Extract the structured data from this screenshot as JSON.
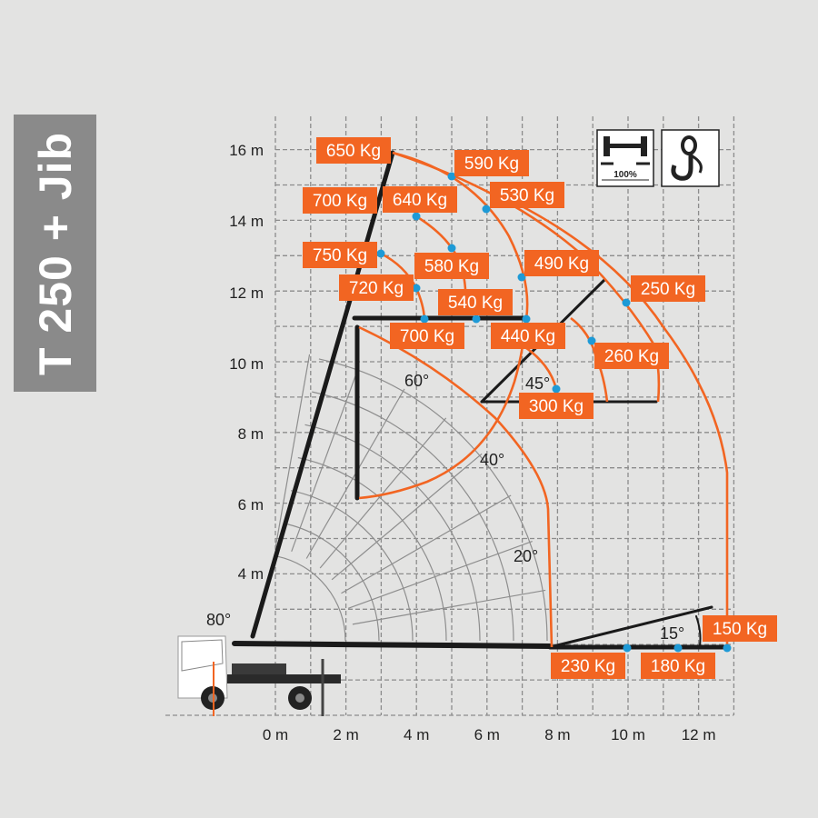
{
  "title": "T 250 + Jib",
  "y_axis": [
    "16 m",
    "14 m",
    "12 m",
    "10 m",
    "8 m",
    "6 m",
    "4 m"
  ],
  "x_axis": [
    "0 m",
    "2 m",
    "4 m",
    "6 m",
    "8 m",
    "10 m",
    "12 m"
  ],
  "angles": [
    "60°",
    "45°",
    "40°",
    "20°",
    "80°",
    "15°"
  ],
  "loads": [
    "650 Kg",
    "590 Kg",
    "530 Kg",
    "700 Kg",
    "640 Kg",
    "750 Kg",
    "580 Kg",
    "490 Kg",
    "250 Kg",
    "720 Kg",
    "540 Kg",
    "700 Kg",
    "440 Kg",
    "260 Kg",
    "300 Kg",
    "150 Kg",
    "230 Kg",
    "180 Kg"
  ],
  "icons": {
    "outrigger": "outrigger-100-icon",
    "outrigger_label": "100%",
    "hook": "hook-icon"
  },
  "colors": {
    "load_curve": "#f26522",
    "load_point": "#1e9ad6",
    "boom": "#1a1a1a",
    "title_bg": "#8a8a8a"
  }
}
